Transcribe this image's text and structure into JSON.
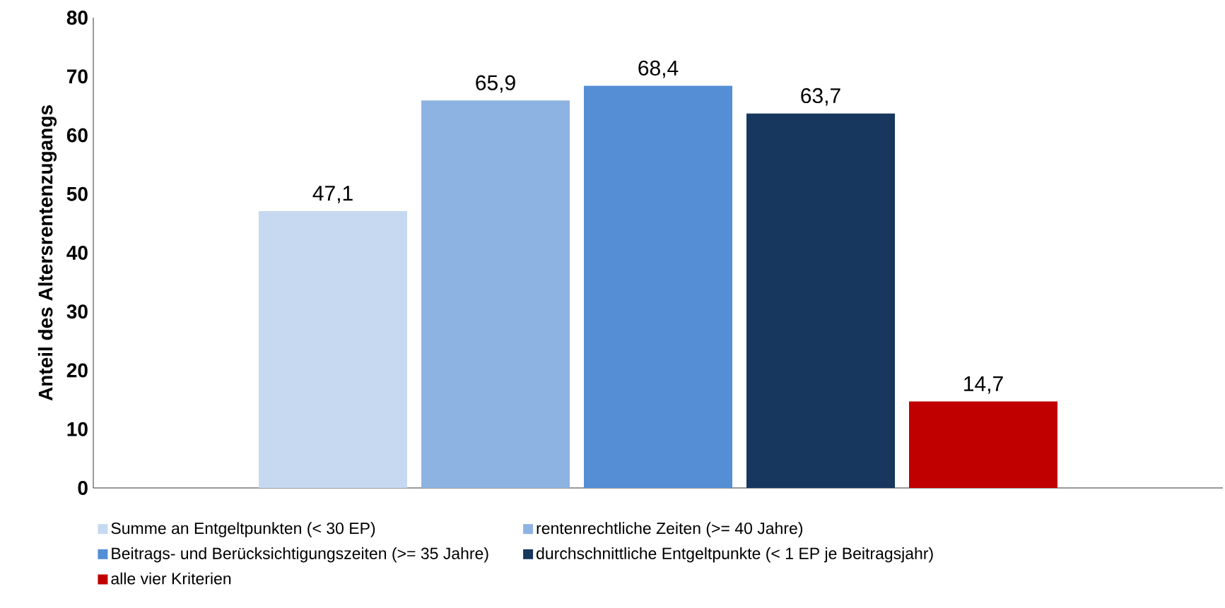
{
  "chart_data": {
    "type": "bar",
    "ylabel": "Anteil des Altersrentenzugangs",
    "categories": [
      null
    ],
    "series": [
      {
        "name": "Summe an Entgeltpunkten (< 30 EP)",
        "color": "#c6d9f0",
        "values": [
          47.1
        ],
        "value_labels": [
          "47,1"
        ]
      },
      {
        "name": "rentenrechtliche Zeiten (>= 40 Jahre)",
        "color": "#8db3e2",
        "values": [
          65.9
        ],
        "value_labels": [
          "65,9"
        ]
      },
      {
        "name": "Beitrags- und Berücksichtigungszeiten (>= 35 Jahre)",
        "color": "#558ed5",
        "values": [
          68.4
        ],
        "value_labels": [
          "68,4"
        ]
      },
      {
        "name": "durchschnittliche Entgeltpunkte (< 1 EP je Beitragsjahr)",
        "color": "#17375e",
        "values": [
          63.7
        ],
        "value_labels": [
          "63,7"
        ]
      },
      {
        "name": "alle vier Kriterien",
        "color": "#c00000",
        "values": [
          14.7
        ],
        "value_labels": [
          "14,7"
        ]
      }
    ],
    "ylim": [
      0,
      80
    ],
    "yticks": [
      0,
      10,
      20,
      30,
      40,
      50,
      60,
      70,
      80
    ],
    "grid": false,
    "legend": "bottom"
  }
}
